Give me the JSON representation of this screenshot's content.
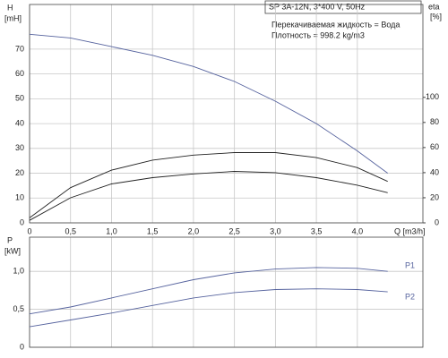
{
  "title": "SP 3A-12N, 3*400 V, 50Hz",
  "notes": [
    "Перекачиваемая жидкость = Вода",
    "Плотность = 998.2 kg/m3"
  ],
  "chart_data": [
    {
      "type": "line",
      "ylabel": "H",
      "yunit": "[mH]",
      "xlabel": "Q [m3/h]",
      "y2label": "eta",
      "y2unit": "[%]",
      "xlim": [
        0,
        4.8
      ],
      "ylim": [
        0,
        88
      ],
      "y2lim": [
        0,
        174
      ],
      "grid": true,
      "show_xtick_labels": true,
      "xticks": [
        0,
        {
          "value": 0.5,
          "label": "0,5"
        },
        {
          "value": 1.0,
          "label": "1,0"
        },
        {
          "value": 1.5,
          "label": "1,5"
        },
        {
          "value": 2.0,
          "label": "2,0"
        },
        {
          "value": 2.5,
          "label": "2,5"
        },
        {
          "value": 3.0,
          "label": "3,0"
        },
        {
          "value": 3.5,
          "label": "3,5"
        },
        {
          "value": 4.0,
          "label": "4,0"
        }
      ],
      "yticks": [
        0,
        10,
        20,
        30,
        40,
        50,
        60,
        70
      ],
      "y2ticks": [
        0,
        20,
        40,
        60,
        80,
        100
      ],
      "x": [
        0,
        0.5,
        1,
        1.5,
        2,
        2.5,
        3,
        3.5,
        4,
        4.37
      ],
      "series": [
        {
          "color": "#56639e",
          "axis": "y",
          "values": [
            76,
            74.5,
            71,
            67.5,
            63,
            57,
            49,
            40,
            29,
            20
          ]
        },
        {
          "color": "#222222",
          "axis": "y2",
          "values": [
            4,
            28,
            42,
            50,
            54,
            56,
            56,
            52,
            44,
            33
          ]
        },
        {
          "color": "#222222",
          "axis": "y2",
          "values": [
            2,
            20,
            31,
            36,
            39,
            41,
            40,
            36,
            30,
            24
          ]
        }
      ]
    },
    {
      "type": "line",
      "ylabel": "P",
      "yunit": "[kW]",
      "xlim": [
        0,
        4.8
      ],
      "ylim": [
        0,
        1.45
      ],
      "grid": true,
      "show_xtick_labels": false,
      "xticks": [
        0,
        0.5,
        1,
        1.5,
        2,
        2.5,
        3,
        3.5,
        4
      ],
      "yticks": [
        0,
        {
          "value": 0.5,
          "label": "0,5"
        },
        {
          "value": 1.0,
          "label": "1,0"
        }
      ],
      "x": [
        0,
        0.5,
        1,
        1.5,
        2,
        2.5,
        3,
        3.5,
        4,
        4.37
      ],
      "series": [
        {
          "name": "P1",
          "color": "#56639e",
          "values": [
            0.44,
            0.53,
            0.65,
            0.77,
            0.89,
            0.98,
            1.03,
            1.05,
            1.04,
            1.0
          ]
        },
        {
          "name": "P2",
          "color": "#56639e",
          "values": [
            0.27,
            0.36,
            0.45,
            0.55,
            0.65,
            0.72,
            0.76,
            0.77,
            0.76,
            0.73
          ]
        }
      ]
    }
  ]
}
